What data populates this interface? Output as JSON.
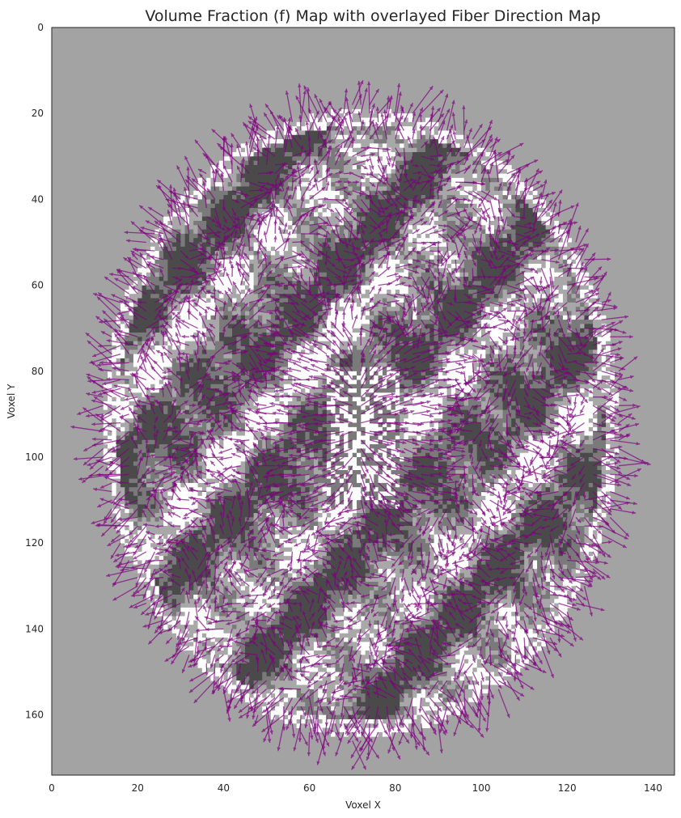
{
  "chart_data": {
    "type": "heatmap",
    "title": "Volume Fraction (f) Map with overlayed Fiber Direction Map",
    "xlabel": "Voxel X",
    "ylabel": "Voxel Y",
    "xlim": [
      0,
      145
    ],
    "ylim": [
      174,
      0
    ],
    "x_ticks": [
      0,
      20,
      40,
      60,
      80,
      100,
      120,
      140
    ],
    "y_ticks": [
      0,
      20,
      40,
      60,
      80,
      100,
      120,
      140,
      160
    ],
    "x_tick_labels": [
      "0",
      "20",
      "40",
      "60",
      "80",
      "100",
      "120",
      "140"
    ],
    "y_tick_labels": [
      "0",
      "20",
      "40",
      "60",
      "80",
      "100",
      "120",
      "140",
      "160"
    ],
    "grid": false,
    "background_color": "#a3a3a3",
    "brain_mask": {
      "center_x": 72,
      "center_y": 92,
      "radius_x": 60,
      "radius_y": 73
    },
    "colormap": [
      "#4a4a4a",
      "#7a7a7a",
      "#a8a8a8",
      "#ffffff"
    ],
    "quiver_color": "#800080",
    "quiver_alpha": 0.7,
    "quiver_style": "arrows",
    "overlays": [
      {
        "name": "Volume Fraction (f) Map",
        "kind": "image"
      },
      {
        "name": "Fiber Direction Map",
        "kind": "quiver"
      }
    ]
  }
}
